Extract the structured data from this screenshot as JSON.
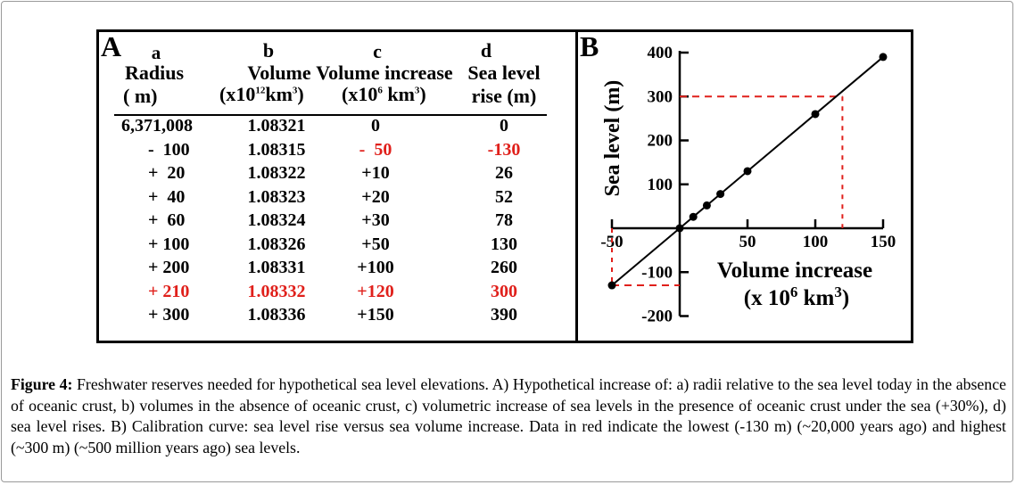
{
  "panel_a": {
    "letter": "A",
    "columns": [
      {
        "letter": "a",
        "title": "Radius",
        "unit": "( m)"
      },
      {
        "letter": "b",
        "title": "Volume",
        "unit_pre": "(x10",
        "unit_sup": "12",
        "unit_mid": "km",
        "unit_sup2": "3",
        "unit_post": ")"
      },
      {
        "letter": "c",
        "title": "Volume increase",
        "unit_pre": "(x10",
        "unit_sup": "6",
        "unit_mid": " km",
        "unit_sup2": "3",
        "unit_post": ")"
      },
      {
        "letter": "d",
        "title": "Sea level",
        "unit": "rise (m)"
      }
    ],
    "rows": [
      {
        "radius": "6,371,008",
        "volume": "1.08321",
        "vol_inc": "0",
        "sea": "0",
        "red": false
      },
      {
        "radius": "-  100",
        "volume": "1.08315",
        "vol_inc": "-  50",
        "sea": "-130",
        "red": false,
        "red_cd": true
      },
      {
        "radius": "+  20",
        "volume": "1.08322",
        "vol_inc": "+10",
        "sea": "26",
        "red": false
      },
      {
        "radius": "+  40",
        "volume": "1.08323",
        "vol_inc": "+20",
        "sea": "52",
        "red": false
      },
      {
        "radius": "+  60",
        "volume": "1.08324",
        "vol_inc": "+30",
        "sea": "78",
        "red": false
      },
      {
        "radius": "+ 100",
        "volume": "1.08326",
        "vol_inc": "+50",
        "sea": "130",
        "red": false
      },
      {
        "radius": "+ 200",
        "volume": "1.08331",
        "vol_inc": "+100",
        "sea": "260",
        "red": false
      },
      {
        "radius": "+ 210",
        "volume": "1.08332",
        "vol_inc": "+120",
        "sea": "300",
        "red": true
      },
      {
        "radius": "+ 300",
        "volume": "1.08336",
        "vol_inc": "+150",
        "sea": "390",
        "red": false
      }
    ]
  },
  "panel_b": {
    "letter": "B"
  },
  "chart_data": {
    "type": "line",
    "title": "",
    "ylabel": "Sea level (m)",
    "xlabel_line1": "Volume increase",
    "xlabel_line2_pre": "(x 10",
    "xlabel_line2_sup": "6",
    "xlabel_line2_mid": " km",
    "xlabel_line2_sup2": "3",
    "xlabel_line2_post": ")",
    "xlim": [
      -50,
      150
    ],
    "ylim": [
      -200,
      400
    ],
    "x_ticks": [
      -50,
      50,
      100,
      150
    ],
    "x_tick_labels": [
      "-50",
      "50",
      "100",
      "150"
    ],
    "y_ticks": [
      400,
      300,
      200,
      100,
      -100,
      -200
    ],
    "y_tick_labels": [
      "400",
      "300",
      "200",
      "100",
      "-100",
      "-200"
    ],
    "series": [
      {
        "name": "Calibration",
        "x": [
          -50,
          0,
          10,
          20,
          30,
          50,
          100,
          150
        ],
        "y": [
          -130,
          0,
          26,
          52,
          78,
          130,
          260,
          390
        ]
      }
    ],
    "highlight_high": {
      "x": 120,
      "y": 300,
      "color": "#e0201b"
    },
    "highlight_low": {
      "x": -50,
      "y": -130,
      "color": "#e0201b"
    },
    "line_color": "#000000"
  },
  "caption": {
    "label": "Figure 4:",
    "text": " Freshwater reserves needed for hypothetical sea level elevations. A) Hypothetical increase of: a) radii relative to the sea level today in the absence of oceanic crust, b) volumes in the absence of oceanic crust, c) volumetric increase of sea levels in the presence of oceanic crust under the sea (+30%), d) sea level rises. B) Calibration curve: sea level rise versus sea volume increase. Data in red indicate the lowest (-130 m) (~20,000 years ago) and highest (~300 m) (~500 million years ago) sea levels."
  }
}
